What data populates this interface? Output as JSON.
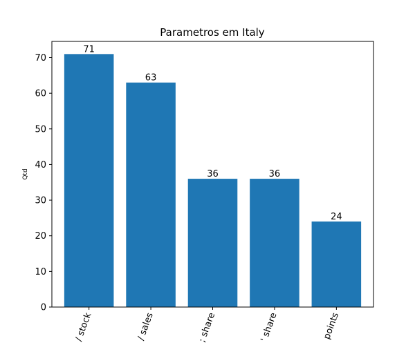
{
  "chart_data": {
    "type": "bar",
    "title": "Parametros em Italy",
    "xlabel": "",
    "ylabel": "Qtd",
    "categories": [
      "/ stock",
      "/ sales",
      "; share",
      "' share",
      "points"
    ],
    "values": [
      71,
      63,
      36,
      36,
      24
    ],
    "data_labels": [
      "71",
      "63",
      "36",
      "36",
      "24"
    ],
    "ylim": [
      0,
      74.55
    ],
    "yticks": [
      0,
      10,
      20,
      30,
      40,
      50,
      60,
      70
    ],
    "ytick_labels": [
      "0",
      "10",
      "20",
      "30",
      "40",
      "50",
      "60",
      "70"
    ],
    "bar_color": "#1f77b4",
    "grid": false,
    "xtick_rotation_deg": -70
  }
}
